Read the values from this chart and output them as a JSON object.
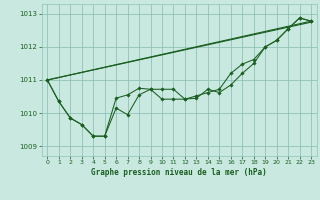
{
  "title": "Graphe pression niveau de la mer (hPa)",
  "bg_color": "#c8e8e0",
  "grid_color": "#90c4b8",
  "line_color": "#1a5e20",
  "xlim": [
    -0.5,
    23.5
  ],
  "ylim": [
    1008.7,
    1013.3
  ],
  "yticks": [
    1009,
    1010,
    1011,
    1012,
    1013
  ],
  "xticks": [
    0,
    1,
    2,
    3,
    4,
    5,
    6,
    7,
    8,
    9,
    10,
    11,
    12,
    13,
    14,
    15,
    16,
    17,
    18,
    19,
    20,
    21,
    22,
    23
  ],
  "line1_x": [
    0,
    1,
    2,
    3,
    4,
    5,
    6,
    7,
    8,
    9,
    10,
    11,
    12,
    13,
    14,
    15,
    16,
    17,
    18,
    19,
    20,
    21,
    22,
    23
  ],
  "line1_y": [
    1011.0,
    1010.35,
    1009.85,
    1009.65,
    1009.3,
    1009.3,
    1010.45,
    1010.55,
    1010.75,
    1010.72,
    1010.72,
    1010.72,
    1010.42,
    1010.45,
    1010.72,
    1010.62,
    1010.85,
    1011.2,
    1011.5,
    1012.0,
    1012.2,
    1012.55,
    1012.88,
    1012.78
  ],
  "line2_x": [
    0,
    1,
    2,
    3,
    4,
    5,
    6,
    7,
    8,
    9,
    10,
    11,
    12,
    13,
    14,
    15,
    16,
    17,
    18,
    19,
    20,
    21,
    22,
    23
  ],
  "line2_y": [
    1011.0,
    1010.35,
    1009.85,
    1009.65,
    1009.3,
    1009.3,
    1010.15,
    1009.95,
    1010.55,
    1010.72,
    1010.42,
    1010.42,
    1010.42,
    1010.52,
    1010.62,
    1010.72,
    1011.2,
    1011.48,
    1011.62,
    1012.0,
    1012.2,
    1012.55,
    1012.88,
    1012.78
  ],
  "trend1_x": [
    0,
    23
  ],
  "trend1_y": [
    1011.0,
    1012.78
  ],
  "trend2_x": [
    0,
    23
  ],
  "trend2_y": [
    1011.0,
    1012.75
  ]
}
